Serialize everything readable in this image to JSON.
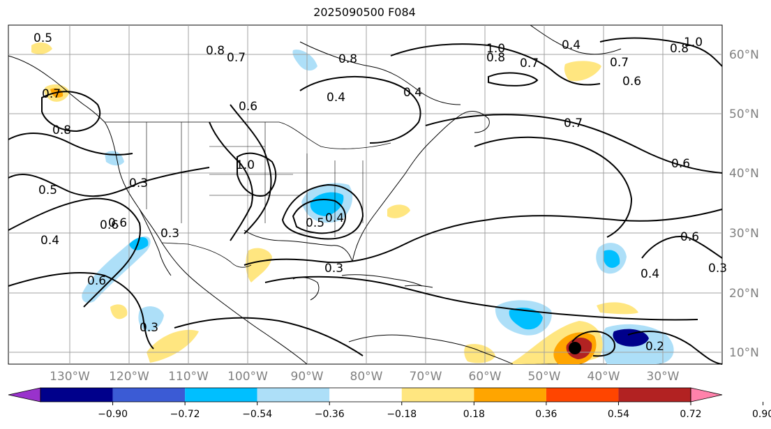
{
  "title": "2025090500 F084",
  "map": {
    "lat_labels": [
      "60°N",
      "50°N",
      "40°N",
      "30°N",
      "20°N",
      "10°N"
    ],
    "lon_labels": [
      "130°W",
      "120°W",
      "110°W",
      "100°W",
      "90°W",
      "80°W",
      "70°W",
      "60°W",
      "50°W",
      "40°W",
      "30°W"
    ],
    "contour_labels": [
      "0.5",
      "0.6",
      "0.7",
      "0.8",
      "0.8",
      "0.7",
      "0.6",
      "1.0",
      "0.3",
      "0.5",
      "0.4",
      "0.6",
      "0.6",
      "0.4",
      "0.3",
      "0.3",
      "0.4",
      "0.8",
      "0.7",
      "0.8",
      "1.0",
      "0.4",
      "0.7",
      "0.8",
      "0.6",
      "0.4",
      "0.3",
      "0.2",
      "0.3",
      "0.5",
      "0.4",
      "0.7",
      "1.0",
      "0.6",
      "0.6"
    ],
    "marker": "tropical-cyclone-center"
  },
  "colorbar": {
    "ticks": [
      "−0.90",
      "−0.72",
      "−0.54",
      "−0.36",
      "−0.18",
      "0.18",
      "0.36",
      "0.54",
      "0.72",
      "0.90"
    ],
    "colors": [
      "#9932CC",
      "#00008B",
      "#3B5BD5",
      "#00BFFF",
      "#ADDFF8",
      "#FFFFFF",
      "#FFE680",
      "#FFA500",
      "#FF4500",
      "#B22222",
      "#FF82AB"
    ]
  }
}
